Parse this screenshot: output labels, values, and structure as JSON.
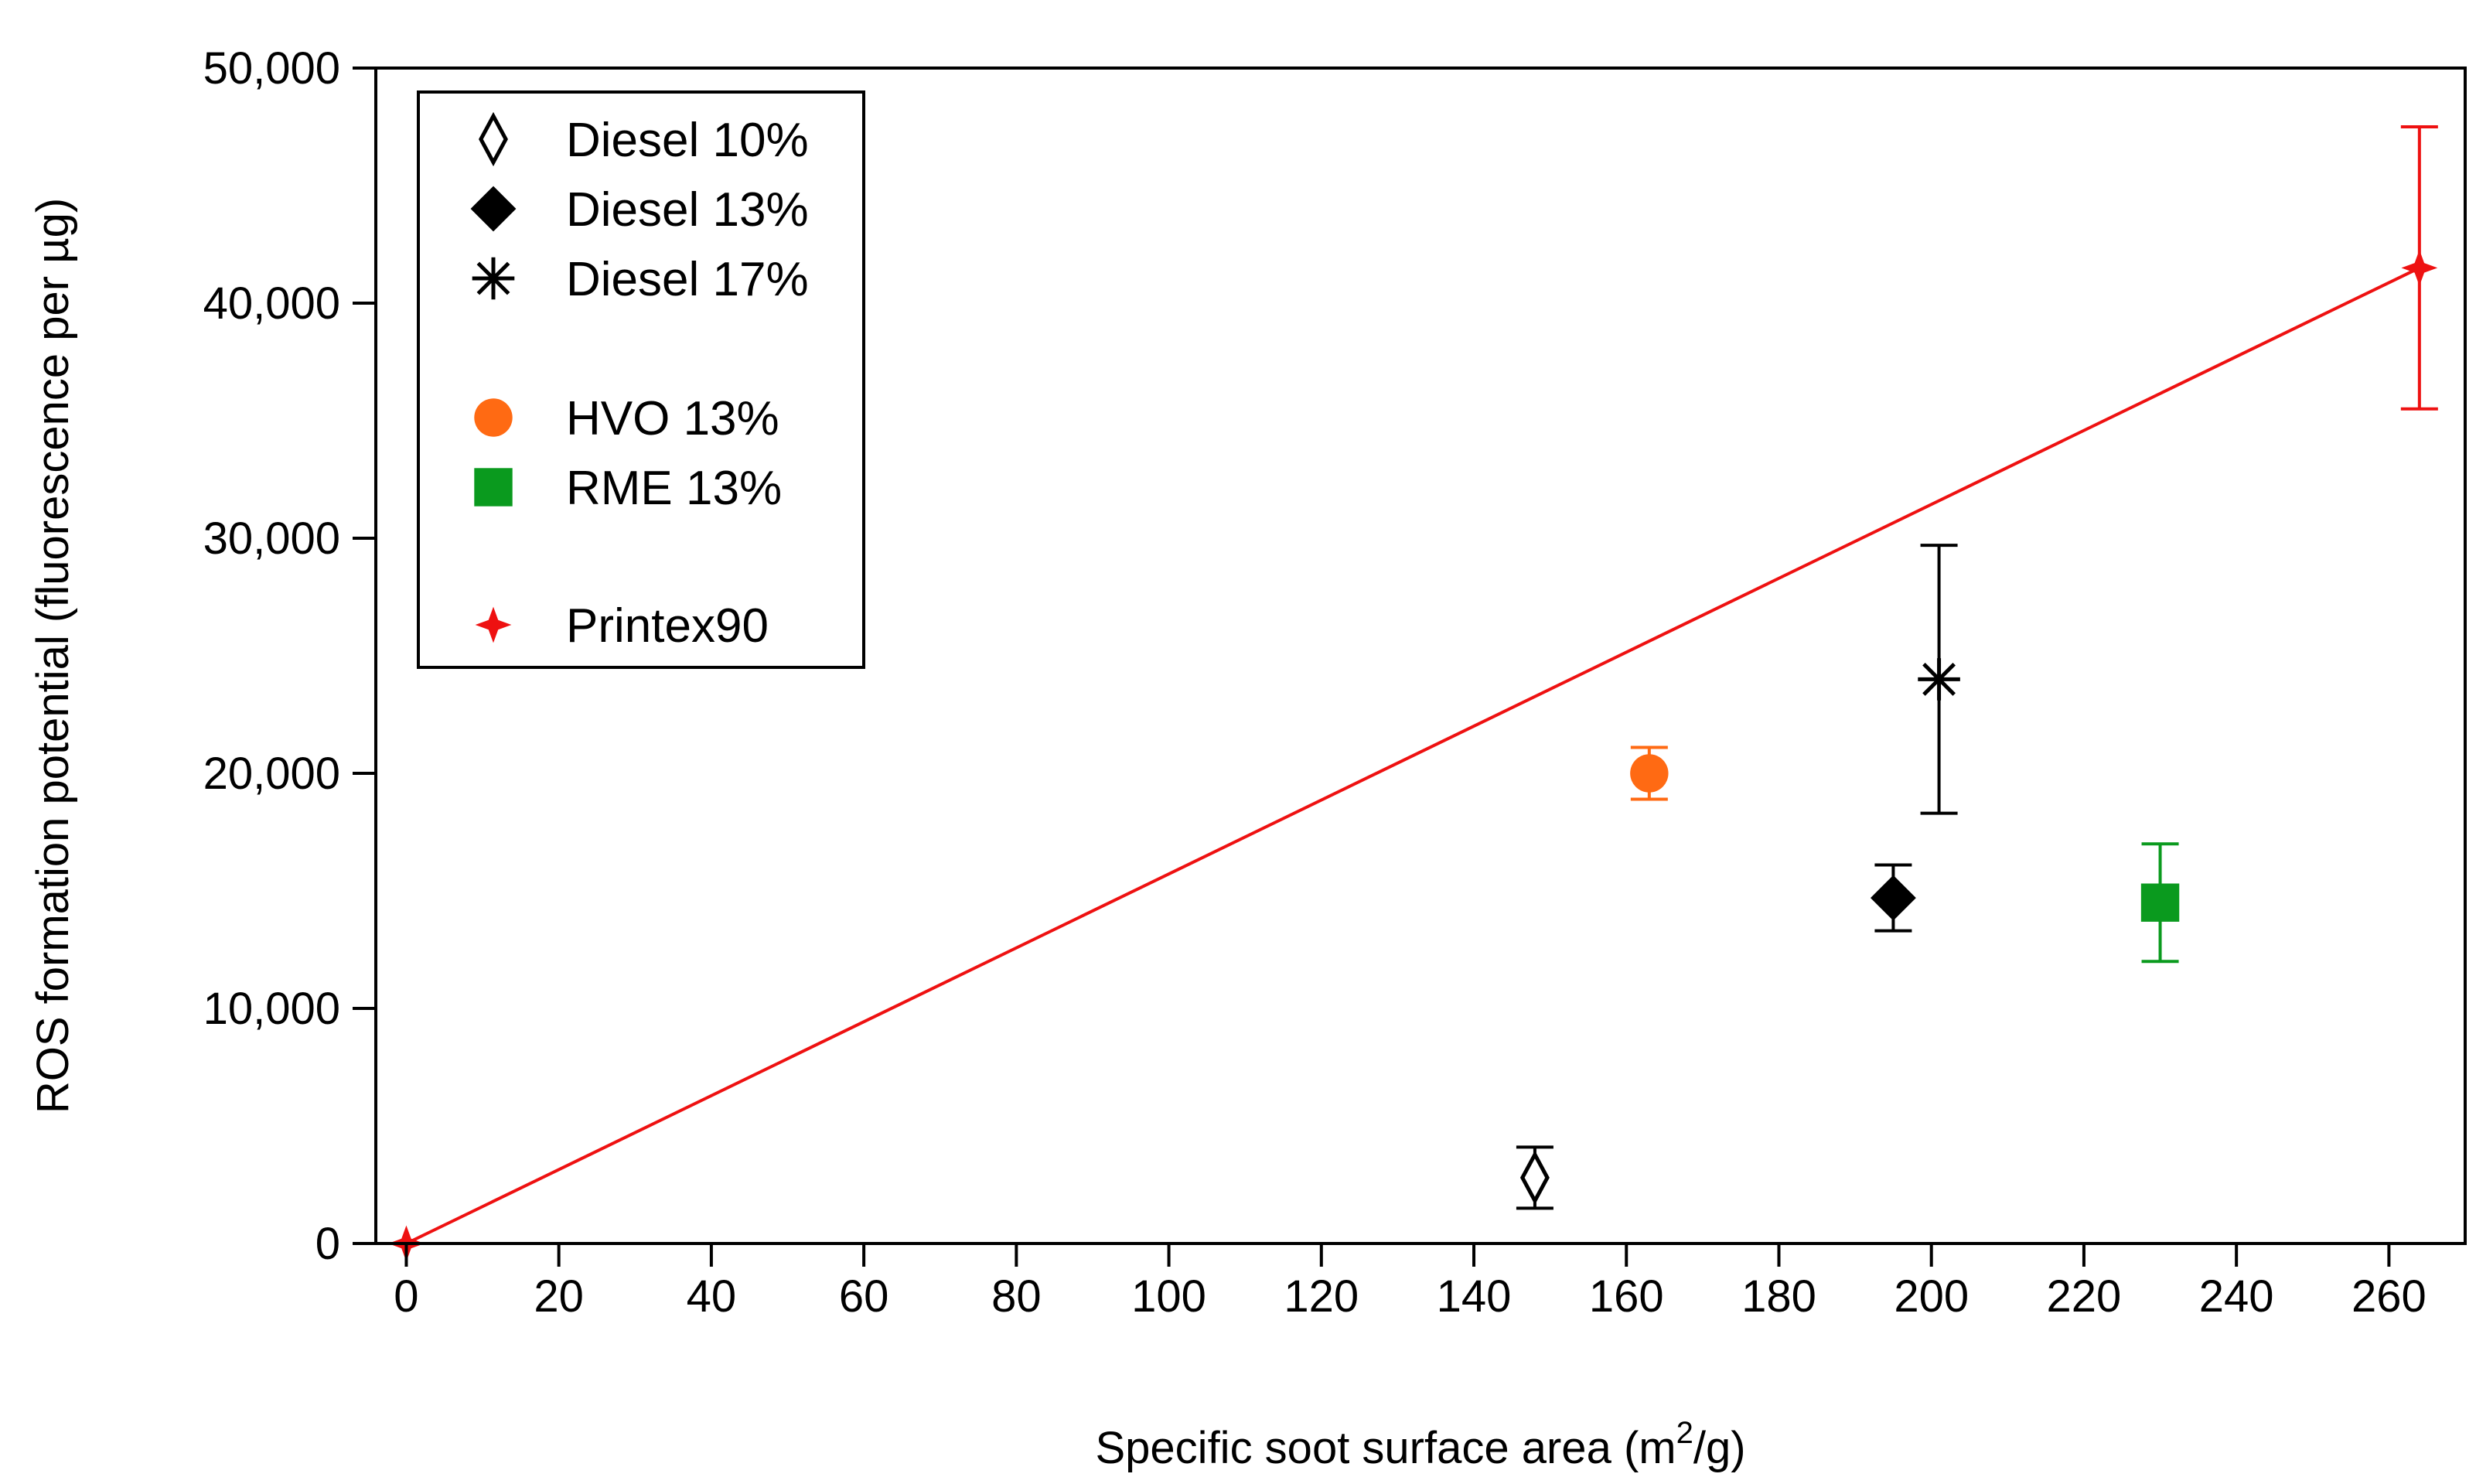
{
  "chart_data": {
    "type": "scatter",
    "title": "",
    "xlabel_prefix": "Specific soot surface area (m",
    "xlabel_sup": "2",
    "xlabel_suffix": "/g)",
    "ylabel": "ROS formation potential (fluorescence per µg)",
    "xlim": [
      -4,
      270
    ],
    "ylim": [
      0,
      50000
    ],
    "x_ticks": [
      0,
      20,
      40,
      60,
      80,
      100,
      120,
      140,
      160,
      180,
      200,
      220,
      240,
      260
    ],
    "x_tick_labels": [
      "0",
      "20",
      "40",
      "60",
      "80",
      "100",
      "120",
      "140",
      "160",
      "180",
      "200",
      "220",
      "240",
      "260"
    ],
    "y_ticks": [
      0,
      10000,
      20000,
      30000,
      40000,
      50000
    ],
    "y_tick_labels": [
      "0",
      "10,000",
      "20,000",
      "30,000",
      "40,000",
      "50,000"
    ],
    "series": [
      {
        "name": "Diesel 10%",
        "marker": "open-diamond",
        "color": "#000000",
        "points": [
          {
            "x": 148,
            "y": 2800,
            "err": 1300
          }
        ]
      },
      {
        "name": "Diesel 13%",
        "marker": "filled-diamond",
        "color": "#000000",
        "points": [
          {
            "x": 195,
            "y": 14700,
            "err": 1400
          }
        ]
      },
      {
        "name": "Diesel 17%",
        "marker": "asterisk",
        "color": "#000000",
        "points": [
          {
            "x": 201,
            "y": 24000,
            "err": 5700
          }
        ]
      },
      {
        "name": "HVO 13%",
        "marker": "circle",
        "color": "#ff6a13",
        "points": [
          {
            "x": 163,
            "y": 20000,
            "err": 1100
          }
        ]
      },
      {
        "name": "RME 13%",
        "marker": "square",
        "color": "#0a9a1e",
        "points": [
          {
            "x": 230,
            "y": 14500,
            "err": 2500
          }
        ]
      },
      {
        "name": "Printex90",
        "marker": "plus-star",
        "color": "#ee1111",
        "points": [
          {
            "x": 0,
            "y": 0,
            "err": 0
          },
          {
            "x": 264,
            "y": 41500,
            "err": 6000
          }
        ]
      }
    ],
    "fit_line": {
      "color": "#ee1111",
      "from": [
        0,
        0
      ],
      "to": [
        264,
        41500
      ]
    },
    "legend": {
      "placement": "top-left"
    }
  }
}
